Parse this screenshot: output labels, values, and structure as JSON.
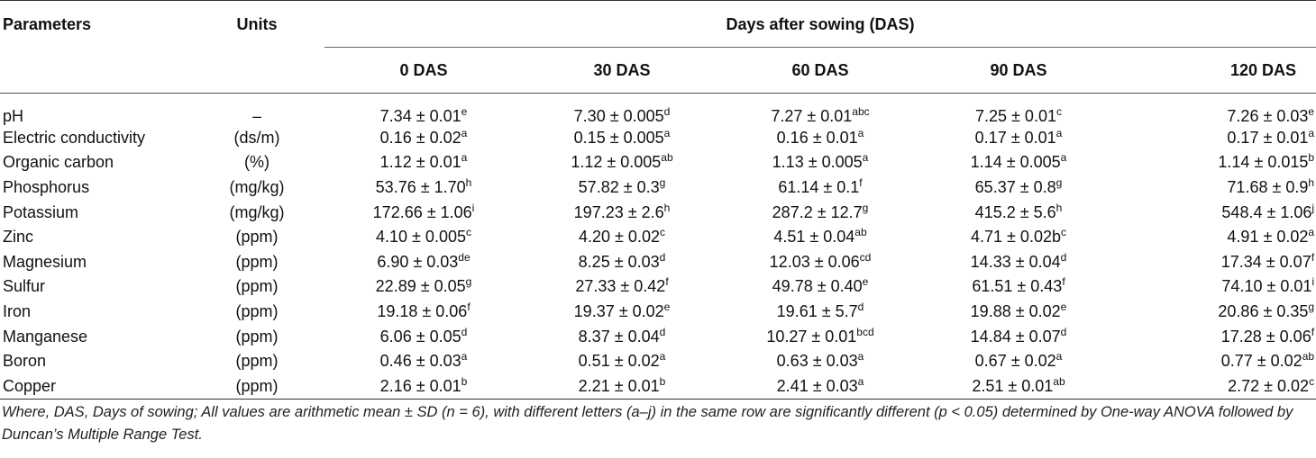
{
  "header": {
    "parameters": "Parameters",
    "units": "Units",
    "group": "Days after sowing (DAS)",
    "days": [
      "0 DAS",
      "30 DAS",
      "60 DAS",
      "90 DAS",
      "120 DAS"
    ]
  },
  "rows": [
    {
      "param": "pH",
      "unit": "–",
      "cells": [
        {
          "v": "7.34 ± 0.01",
          "s": "e"
        },
        {
          "v": "7.30 ± 0.005",
          "s": "d"
        },
        {
          "v": "7.27 ± 0.01",
          "s": "abc"
        },
        {
          "v": "7.25 ± 0.01",
          "s": "c"
        },
        {
          "v": "7.26 ± 0.03",
          "s": "e"
        }
      ]
    },
    {
      "param": "Electric conductivity",
      "unit": "(ds/m)",
      "cells": [
        {
          "v": "0.16 ± 0.02",
          "s": "a"
        },
        {
          "v": "0.15 ± 0.005",
          "s": "a"
        },
        {
          "v": "0.16 ± 0.01",
          "s": "a"
        },
        {
          "v": "0.17 ± 0.01",
          "s": "a"
        },
        {
          "v": "0.17 ± 0.01",
          "s": "a"
        }
      ]
    },
    {
      "param": "Organic carbon",
      "unit": "(%)",
      "cells": [
        {
          "v": "1.12 ± 0.01",
          "s": "a"
        },
        {
          "v": "1.12 ± 0.005",
          "s": "ab"
        },
        {
          "v": "1.13 ± 0.005",
          "s": "a"
        },
        {
          "v": "1.14 ± 0.005",
          "s": "a"
        },
        {
          "v": "1.14 ± 0.015",
          "s": "b"
        }
      ]
    },
    {
      "param": "Phosphorus",
      "unit": "(mg/kg)",
      "cells": [
        {
          "v": "53.76 ± 1.70",
          "s": "h"
        },
        {
          "v": "57.82 ± 0.3",
          "s": "g"
        },
        {
          "v": "61.14 ± 0.1",
          "s": "f"
        },
        {
          "v": "65.37 ± 0.8",
          "s": "g"
        },
        {
          "v": "71.68 ± 0.9",
          "s": "h"
        }
      ]
    },
    {
      "param": "Potassium",
      "unit": "(mg/kg)",
      "cells": [
        {
          "v": "172.66 ± 1.06",
          "s": "i"
        },
        {
          "v": "197.23 ± 2.6",
          "s": "h"
        },
        {
          "v": "287.2 ± 12.7",
          "s": "g"
        },
        {
          "v": "415.2 ± 5.6",
          "s": "h"
        },
        {
          "v": "548.4 ± 1.06",
          "s": "j"
        }
      ]
    },
    {
      "param": "Zinc",
      "unit": "(ppm)",
      "cells": [
        {
          "v": "4.10 ± 0.005",
          "s": "c"
        },
        {
          "v": "4.20 ± 0.02",
          "s": "c"
        },
        {
          "v": "4.51 ± 0.04",
          "s": "ab"
        },
        {
          "v": "4.71 ± 0.02b",
          "s": "c"
        },
        {
          "v": "4.91 ± 0.02",
          "s": "a"
        }
      ]
    },
    {
      "param": "Magnesium",
      "unit": "(ppm)",
      "cells": [
        {
          "v": "6.90 ± 0.03",
          "s": "de"
        },
        {
          "v": "8.25 ± 0.03",
          "s": "d"
        },
        {
          "v": "12.03 ± 0.06",
          "s": "cd"
        },
        {
          "v": "14.33 ± 0.04",
          "s": "d"
        },
        {
          "v": "17.34 ± 0.07",
          "s": "f"
        }
      ]
    },
    {
      "param": "Sulfur",
      "unit": "(ppm)",
      "cells": [
        {
          "v": "22.89 ± 0.05",
          "s": "g"
        },
        {
          "v": "27.33 ± 0.42",
          "s": "f"
        },
        {
          "v": "49.78 ± 0.40",
          "s": "e"
        },
        {
          "v": "61.51 ± 0.43",
          "s": "f"
        },
        {
          "v": "74.10 ± 0.01",
          "s": "i"
        }
      ]
    },
    {
      "param": "Iron",
      "unit": "(ppm)",
      "cells": [
        {
          "v": "19.18 ± 0.06",
          "s": "f"
        },
        {
          "v": "19.37 ± 0.02",
          "s": "e"
        },
        {
          "v": "19.61 ± 5.7",
          "s": "d"
        },
        {
          "v": "19.88 ± 0.02",
          "s": "e"
        },
        {
          "v": "20.86 ± 0.35",
          "s": "g"
        }
      ]
    },
    {
      "param": "Manganese",
      "unit": "(ppm)",
      "cells": [
        {
          "v": "6.06 ± 0.05",
          "s": "d"
        },
        {
          "v": "8.37 ± 0.04",
          "s": "d"
        },
        {
          "v": "10.27 ± 0.01",
          "s": "bcd"
        },
        {
          "v": "14.84 ± 0.07",
          "s": "d"
        },
        {
          "v": "17.28 ± 0.06",
          "s": "f"
        }
      ]
    },
    {
      "param": "Boron",
      "unit": "(ppm)",
      "cells": [
        {
          "v": "0.46 ± 0.03",
          "s": "a"
        },
        {
          "v": "0.51 ± 0.02",
          "s": "a"
        },
        {
          "v": "0.63 ± 0.03",
          "s": "a"
        },
        {
          "v": "0.67 ± 0.02",
          "s": "a"
        },
        {
          "v": "0.77 ± 0.02",
          "s": "ab"
        }
      ]
    },
    {
      "param": "Copper",
      "unit": "(ppm)",
      "cells": [
        {
          "v": "2.16 ± 0.01",
          "s": "b"
        },
        {
          "v": "2.21 ± 0.01",
          "s": "b"
        },
        {
          "v": "2.41 ± 0.03",
          "s": "a"
        },
        {
          "v": "2.51 ± 0.01",
          "s": "ab"
        },
        {
          "v": "2.72 ± 0.02",
          "s": "c"
        }
      ]
    }
  ],
  "footnote": "Where, DAS, Days of sowing; All values are arithmetic mean ± SD (n = 6), with different letters (a–j) in the same row are significantly different (p < 0.05) determined by One-way ANOVA followed by Duncan’s Multiple Range Test."
}
